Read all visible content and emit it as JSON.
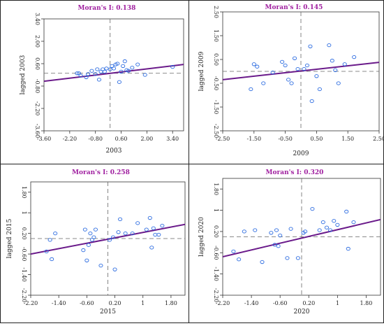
{
  "chart_data": [
    {
      "type": "scatter",
      "title": "Moran's I: 0.138",
      "xlabel": "2003",
      "ylabel": "lagged 2003",
      "xlim": [
        -3.6,
        4.0
      ],
      "ylim": [
        -3.6,
        3.4
      ],
      "xticks": [
        "-3.60",
        "-2.20",
        "-0.80",
        "0.60",
        "2.00",
        "3.40"
      ],
      "yticks": [
        "3.40",
        "2.00",
        "0.60",
        "-0.80",
        "-2.20",
        "-3.60"
      ],
      "xtick_values": [
        -3.6,
        -2.2,
        -0.8,
        0.6,
        2.0,
        3.4
      ],
      "ytick_values": [
        3.4,
        2.0,
        0.6,
        -0.8,
        -2.2,
        -3.6
      ],
      "slope": 0.138,
      "fit_line": [
        [
          -3.6,
          -0.5
        ],
        [
          4.0,
          0.55
        ]
      ],
      "points": [
        [
          -1.8,
          0.0
        ],
        [
          -1.7,
          0.0
        ],
        [
          -1.6,
          -0.15
        ],
        [
          -1.3,
          -0.25
        ],
        [
          -1.2,
          -0.05
        ],
        [
          -1.0,
          0.15
        ],
        [
          -0.8,
          -0.05
        ],
        [
          -0.7,
          0.25
        ],
        [
          -0.6,
          -0.4
        ],
        [
          -0.5,
          0.1
        ],
        [
          -0.4,
          0.25
        ],
        [
          -0.3,
          0.1
        ],
        [
          -0.2,
          0.3
        ],
        [
          0.0,
          0.25
        ],
        [
          0.1,
          0.45
        ],
        [
          0.2,
          0.3
        ],
        [
          0.3,
          0.55
        ],
        [
          0.4,
          0.6
        ],
        [
          0.5,
          -0.55
        ],
        [
          0.6,
          0.1
        ],
        [
          0.7,
          0.45
        ],
        [
          0.8,
          0.75
        ],
        [
          0.9,
          0.2
        ],
        [
          1.0,
          0.15
        ],
        [
          1.2,
          0.35
        ],
        [
          1.5,
          0.55
        ],
        [
          1.9,
          -0.1
        ],
        [
          3.4,
          0.4
        ]
      ]
    },
    {
      "type": "scatter",
      "title": "Moran's I: 0.145",
      "xlabel": "2009",
      "ylabel": "lagged 2009",
      "xlim": [
        -2.5,
        2.5
      ],
      "ylim": [
        -2.5,
        2.5
      ],
      "xticks": [
        "-2.50",
        "-1.50",
        "-0.50",
        "0.50",
        "1.50",
        "2.50"
      ],
      "yticks": [
        "2.50",
        "1.50",
        "0.50",
        "-0.50",
        "-1.50",
        "-2.50"
      ],
      "xtick_values": [
        -2.5,
        -1.5,
        -0.5,
        0.5,
        1.5,
        2.5
      ],
      "ytick_values": [
        2.5,
        1.5,
        0.5,
        -0.5,
        -1.5,
        -2.5
      ],
      "slope": 0.145,
      "fit_line": [
        [
          -2.5,
          -0.35
        ],
        [
          2.5,
          0.38
        ]
      ],
      "points": [
        [
          -1.6,
          -0.75
        ],
        [
          -1.5,
          0.3
        ],
        [
          -1.4,
          0.2
        ],
        [
          -1.2,
          -0.5
        ],
        [
          -0.9,
          -0.05
        ],
        [
          -0.6,
          0.4
        ],
        [
          -0.5,
          0.25
        ],
        [
          -0.4,
          -0.35
        ],
        [
          -0.3,
          -0.5
        ],
        [
          -0.2,
          0.55
        ],
        [
          -0.1,
          0.1
        ],
        [
          0.1,
          0.1
        ],
        [
          0.2,
          0.25
        ],
        [
          0.3,
          1.05
        ],
        [
          0.35,
          -1.25
        ],
        [
          0.5,
          -0.2
        ],
        [
          0.6,
          -0.75
        ],
        [
          0.9,
          1.1
        ],
        [
          1.0,
          0.45
        ],
        [
          1.1,
          0.05
        ],
        [
          1.2,
          -0.5
        ],
        [
          1.4,
          0.3
        ],
        [
          1.7,
          0.6
        ]
      ]
    },
    {
      "type": "scatter",
      "title": "Moran's I: 0.258",
      "xlabel": "2015",
      "ylabel": "lagged 2015",
      "xlim": [
        -2.2,
        2.2
      ],
      "ylim": [
        -2.2,
        2.2
      ],
      "xticks": [
        "-2.20",
        "-1.40",
        "-0.60",
        "0.20",
        "1",
        "1.80"
      ],
      "yticks": [
        "1.80",
        "1",
        "0.20",
        "-0.60",
        "-1.40",
        "-2.20"
      ],
      "xtick_values": [
        -2.2,
        -1.4,
        -0.6,
        0.2,
        1.0,
        1.8
      ],
      "ytick_values": [
        1.8,
        1.0,
        0.2,
        -0.6,
        -1.4,
        -2.2
      ],
      "slope": 0.258,
      "fit_line": [
        [
          -2.2,
          -0.6
        ],
        [
          2.2,
          0.55
        ]
      ],
      "points": [
        [
          -1.75,
          -0.5
        ],
        [
          -1.65,
          -0.05
        ],
        [
          -1.6,
          -0.8
        ],
        [
          -1.5,
          0.2
        ],
        [
          -0.7,
          -0.45
        ],
        [
          -0.65,
          0.35
        ],
        [
          -0.6,
          -0.85
        ],
        [
          -0.55,
          -0.25
        ],
        [
          -0.5,
          0.2
        ],
        [
          -0.45,
          -0.05
        ],
        [
          -0.4,
          0.05
        ],
        [
          -0.35,
          0.35
        ],
        [
          -0.2,
          -1.05
        ],
        [
          0.05,
          -0.05
        ],
        [
          0.15,
          0.05
        ],
        [
          0.2,
          -1.2
        ],
        [
          0.3,
          0.25
        ],
        [
          0.35,
          0.75
        ],
        [
          0.5,
          0.2
        ],
        [
          0.7,
          0.2
        ],
        [
          0.85,
          0.6
        ],
        [
          1.1,
          0.35
        ],
        [
          1.25,
          -0.35
        ],
        [
          1.35,
          0.15
        ],
        [
          1.45,
          0.15
        ],
        [
          1.2,
          0.8
        ],
        [
          1.3,
          0.4
        ],
        [
          1.55,
          0.5
        ]
      ]
    },
    {
      "type": "scatter",
      "title": "Moran's I: 0.320",
      "xlabel": "2020",
      "ylabel": "lagged 2020",
      "xlim": [
        -2.2,
        2.2
      ],
      "ylim": [
        -2.2,
        2.2
      ],
      "xticks": [
        "-2.20",
        "-1.40",
        "-0.60",
        "0.20",
        "1",
        "1.80"
      ],
      "yticks": [
        "1.80",
        "1",
        "0.20",
        "-0.60",
        "-1.40",
        "-2.20"
      ],
      "xtick_values": [
        -2.2,
        -1.4,
        -0.6,
        0.2,
        1.0,
        1.8
      ],
      "ytick_values": [
        1.8,
        1.0,
        0.2,
        -0.6,
        -1.4,
        -2.2
      ],
      "slope": 0.32,
      "fit_line": [
        [
          -2.2,
          -0.75
        ],
        [
          2.2,
          0.65
        ]
      ],
      "points": [
        [
          -1.9,
          -0.55
        ],
        [
          -1.75,
          -0.85
        ],
        [
          -1.6,
          0.2
        ],
        [
          -1.3,
          0.25
        ],
        [
          -1.1,
          -0.95
        ],
        [
          -0.85,
          0.15
        ],
        [
          -0.75,
          -0.3
        ],
        [
          -0.7,
          0.25
        ],
        [
          -0.65,
          -0.35
        ],
        [
          -0.6,
          0.05
        ],
        [
          -0.4,
          -0.8
        ],
        [
          -0.3,
          0.3
        ],
        [
          -0.1,
          -0.8
        ],
        [
          0.05,
          0.15
        ],
        [
          0.1,
          0.2
        ],
        [
          0.3,
          1.05
        ],
        [
          0.5,
          0.25
        ],
        [
          0.6,
          0.55
        ],
        [
          0.7,
          0.35
        ],
        [
          0.8,
          0.25
        ],
        [
          0.9,
          0.6
        ],
        [
          1.0,
          0.45
        ],
        [
          1.25,
          0.95
        ],
        [
          1.3,
          -0.45
        ],
        [
          1.45,
          0.55
        ]
      ]
    }
  ]
}
